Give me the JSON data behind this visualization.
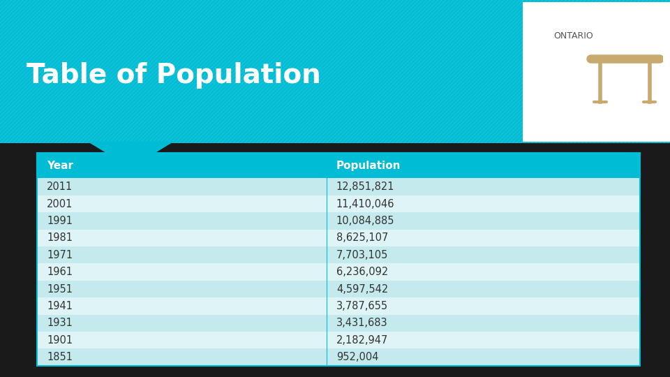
{
  "title": "Table of Population",
  "ontario_label": "ONTARIO",
  "header": [
    "Year",
    "Population"
  ],
  "rows": [
    [
      "2011",
      "12,851,821"
    ],
    [
      "2001",
      "11,410,046"
    ],
    [
      "1991",
      "10,084,885"
    ],
    [
      "1981",
      "8,625,107"
    ],
    [
      "1971",
      "7,703,105"
    ],
    [
      "1961",
      "6,236,092"
    ],
    [
      "1951",
      "4,597,542"
    ],
    [
      "1941",
      "3,787,655"
    ],
    [
      "1931",
      "3,431,683"
    ],
    [
      "1901",
      "2,182,947"
    ],
    [
      "1851",
      "952,004"
    ]
  ],
  "bg_color": "#1a1a1a",
  "teal_color": "#00bcd4",
  "header_text_color": "#ffffff",
  "row_text_color": "#333333",
  "title_color": "#ffffff",
  "ontario_color": "#555555",
  "stripe_colors": [
    "#c5eaed",
    "#dff4f6"
  ],
  "top_bg": "#00bcd4",
  "table_border_color": "#00bcd4",
  "table_icon_color": "#c8a96e"
}
